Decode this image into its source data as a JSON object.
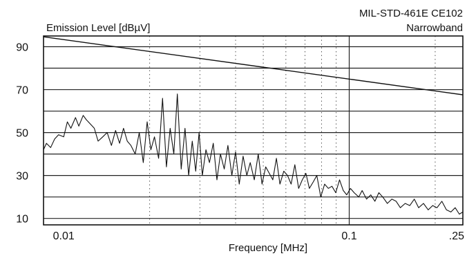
{
  "chart_data": {
    "type": "line",
    "title": "MIL-STD-461E CE102",
    "subtitle": "Narrowband",
    "ylabel": "Emission Level [dBµV]",
    "xlabel": "Frequency [MHz]",
    "x_scale": "log",
    "xlim": [
      0.0085,
      0.25
    ],
    "ylim": [
      7,
      95
    ],
    "grid": true,
    "x_ticks": [
      {
        "value": 0.01,
        "label": "0.01"
      },
      {
        "value": 0.1,
        "label": "0.1"
      },
      {
        "value": 0.25,
        "label": ".25"
      }
    ],
    "y_ticks": [
      {
        "value": 10,
        "label": "10"
      },
      {
        "value": 30,
        "label": "30"
      },
      {
        "value": 50,
        "label": "50"
      },
      {
        "value": 70,
        "label": "70"
      },
      {
        "value": 90,
        "label": "90"
      }
    ],
    "series": [
      {
        "role": "limit",
        "x": [
          0.0085,
          0.25
        ],
        "y": [
          94.6,
          67.6
        ]
      },
      {
        "role": "measured",
        "x": [
          0.0085,
          0.0087,
          0.009,
          0.0093,
          0.0096,
          0.01,
          0.0103,
          0.0106,
          0.011,
          0.0113,
          0.0117,
          0.012,
          0.0124,
          0.0128,
          0.0132,
          0.0137,
          0.0142,
          0.0147,
          0.0152,
          0.0157,
          0.0162,
          0.0167,
          0.0172,
          0.0178,
          0.0184,
          0.019,
          0.0196,
          0.0202,
          0.0208,
          0.0215,
          0.0222,
          0.0229,
          0.0236,
          0.0243,
          0.025,
          0.0258,
          0.0266,
          0.0274,
          0.0282,
          0.029,
          0.0298,
          0.0306,
          0.0315,
          0.0324,
          0.0334,
          0.0344,
          0.0354,
          0.0365,
          0.0376,
          0.0388,
          0.04,
          0.0412,
          0.0425,
          0.0438,
          0.045,
          0.0465,
          0.048,
          0.0495,
          0.051,
          0.0525,
          0.054,
          0.0556,
          0.0572,
          0.059,
          0.0608,
          0.0626,
          0.0645,
          0.0665,
          0.0685,
          0.0705,
          0.0725,
          0.0748,
          0.077,
          0.0795,
          0.082,
          0.0845,
          0.087,
          0.0897,
          0.0925,
          0.0953,
          0.098,
          0.101,
          0.104,
          0.108,
          0.111,
          0.115,
          0.119,
          0.123,
          0.127,
          0.131,
          0.136,
          0.141,
          0.146,
          0.151,
          0.157,
          0.163,
          0.169,
          0.175,
          0.182,
          0.189,
          0.196,
          0.203,
          0.211,
          0.219,
          0.227,
          0.235,
          0.243,
          0.25
        ],
        "y": [
          42,
          45,
          43,
          47,
          49,
          48,
          55,
          52,
          57,
          53,
          58,
          56,
          54,
          52,
          46,
          48,
          50,
          44,
          51,
          45,
          52,
          46,
          44,
          40,
          50,
          36,
          55,
          42,
          48,
          38,
          66,
          34,
          52,
          40,
          68,
          33,
          52,
          30,
          46,
          32,
          50,
          30,
          42,
          36,
          45,
          28,
          40,
          33,
          44,
          30,
          41,
          26,
          39,
          30,
          36,
          28,
          40,
          26,
          34,
          31,
          28,
          38,
          26,
          32,
          30,
          26,
          35,
          24,
          28,
          31,
          24,
          27,
          30,
          20,
          26,
          24,
          25,
          22,
          28,
          23,
          21,
          24,
          22,
          20,
          23,
          19,
          21,
          18,
          22,
          20,
          17,
          19,
          18,
          15,
          17,
          16,
          19,
          15,
          17,
          14,
          16,
          15,
          18,
          14,
          13,
          15,
          12,
          13
        ]
      }
    ]
  }
}
